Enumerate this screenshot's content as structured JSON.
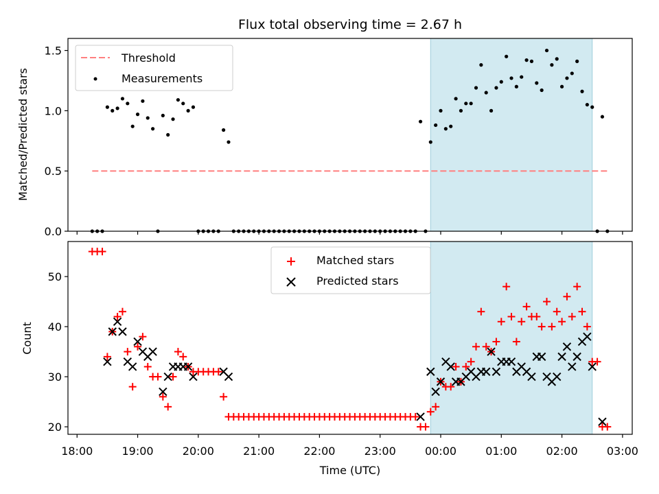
{
  "chart_data": [
    {
      "type": "scatter",
      "title": "Flux total observing time = 2.67 h",
      "xlabel": "",
      "ylabel": "Matched/Predicted stars",
      "ylim": [
        0,
        1.6
      ],
      "yticks": [
        0.0,
        0.5,
        1.0,
        1.5
      ],
      "ytick_labels": [
        "0.0",
        "0.5",
        "1.0",
        "1.5"
      ],
      "grid": false,
      "legend_position": "top-left",
      "shaded_region": {
        "start": "23:50",
        "end": "02:30",
        "color": "#add8e6"
      },
      "threshold": {
        "name": "Threshold",
        "value": 0.5,
        "x_start": "18:15",
        "x_end": "02:45",
        "color": "#ff7f7f",
        "style": "dashed"
      },
      "series": [
        {
          "name": "Measurements",
          "color": "#000000",
          "marker": "dot",
          "points": [
            [
              "18:15",
              0
            ],
            [
              "18:20",
              0
            ],
            [
              "18:25",
              0
            ],
            [
              "18:30",
              1.03
            ],
            [
              "18:35",
              1.0
            ],
            [
              "18:40",
              1.02
            ],
            [
              "18:45",
              1.1
            ],
            [
              "18:50",
              1.06
            ],
            [
              "18:55",
              0.87
            ],
            [
              "19:00",
              0.97
            ],
            [
              "19:05",
              1.08
            ],
            [
              "19:10",
              0.94
            ],
            [
              "19:15",
              0.85
            ],
            [
              "19:20",
              0
            ],
            [
              "19:25",
              0.96
            ],
            [
              "19:30",
              0.8
            ],
            [
              "19:35",
              0.93
            ],
            [
              "19:40",
              1.09
            ],
            [
              "19:45",
              1.06
            ],
            [
              "19:50",
              1.0
            ],
            [
              "19:55",
              1.03
            ],
            [
              "20:00",
              0
            ],
            [
              "20:05",
              0
            ],
            [
              "20:10",
              0
            ],
            [
              "20:15",
              0
            ],
            [
              "20:20",
              0
            ],
            [
              "20:25",
              0.84
            ],
            [
              "20:30",
              0.74
            ],
            [
              "20:35",
              0
            ],
            [
              "20:40",
              0
            ],
            [
              "20:45",
              0
            ],
            [
              "20:50",
              0
            ],
            [
              "20:55",
              0
            ],
            [
              "21:00",
              0
            ],
            [
              "21:05",
              0
            ],
            [
              "21:10",
              0
            ],
            [
              "21:15",
              0
            ],
            [
              "21:20",
              0
            ],
            [
              "21:25",
              0
            ],
            [
              "21:30",
              0
            ],
            [
              "21:35",
              0
            ],
            [
              "21:40",
              0
            ],
            [
              "21:45",
              0
            ],
            [
              "21:50",
              0
            ],
            [
              "21:55",
              0
            ],
            [
              "22:00",
              0
            ],
            [
              "22:05",
              0
            ],
            [
              "22:10",
              0
            ],
            [
              "22:15",
              0
            ],
            [
              "22:20",
              0
            ],
            [
              "22:25",
              0
            ],
            [
              "22:30",
              0
            ],
            [
              "22:35",
              0
            ],
            [
              "22:40",
              0
            ],
            [
              "22:45",
              0
            ],
            [
              "22:50",
              0
            ],
            [
              "22:55",
              0
            ],
            [
              "23:00",
              0
            ],
            [
              "23:05",
              0
            ],
            [
              "23:10",
              0
            ],
            [
              "23:15",
              0
            ],
            [
              "23:20",
              0
            ],
            [
              "23:25",
              0
            ],
            [
              "23:30",
              0
            ],
            [
              "23:35",
              0
            ],
            [
              "23:40",
              0.91
            ],
            [
              "23:45",
              0
            ],
            [
              "23:50",
              0.74
            ],
            [
              "23:55",
              0.88
            ],
            [
              "00:00",
              1.0
            ],
            [
              "00:05",
              0.85
            ],
            [
              "00:10",
              0.87
            ],
            [
              "00:15",
              1.1
            ],
            [
              "00:20",
              1.0
            ],
            [
              "00:25",
              1.06
            ],
            [
              "00:30",
              1.06
            ],
            [
              "00:35",
              1.19
            ],
            [
              "00:40",
              1.38
            ],
            [
              "00:45",
              1.15
            ],
            [
              "00:50",
              1.0
            ],
            [
              "00:55",
              1.19
            ],
            [
              "01:00",
              1.24
            ],
            [
              "01:05",
              1.45
            ],
            [
              "01:10",
              1.27
            ],
            [
              "01:15",
              1.2
            ],
            [
              "01:20",
              1.28
            ],
            [
              "01:25",
              1.42
            ],
            [
              "01:30",
              1.41
            ],
            [
              "01:35",
              1.23
            ],
            [
              "01:40",
              1.17
            ],
            [
              "01:45",
              1.5
            ],
            [
              "01:50",
              1.38
            ],
            [
              "01:55",
              1.43
            ],
            [
              "02:00",
              1.2
            ],
            [
              "02:05",
              1.27
            ],
            [
              "02:10",
              1.31
            ],
            [
              "02:15",
              1.41
            ],
            [
              "02:20",
              1.16
            ],
            [
              "02:25",
              1.05
            ],
            [
              "02:30",
              1.03
            ],
            [
              "02:35",
              0
            ],
            [
              "02:40",
              0.95
            ],
            [
              "02:45",
              0
            ]
          ]
        }
      ]
    },
    {
      "type": "scatter",
      "title": "",
      "xlabel": "Time (UTC)",
      "ylabel": "Count",
      "ylim": [
        18.5,
        57
      ],
      "yticks": [
        20,
        30,
        40,
        50
      ],
      "ytick_labels": [
        "20",
        "30",
        "40",
        "50"
      ],
      "xticks": [
        "18:00",
        "19:00",
        "20:00",
        "21:00",
        "22:00",
        "23:00",
        "00:00",
        "01:00",
        "02:00",
        "03:00"
      ],
      "grid": false,
      "legend_position": "top-center",
      "shaded_region": {
        "start": "23:50",
        "end": "02:30",
        "color": "#add8e6"
      },
      "series": [
        {
          "name": "Matched stars",
          "color": "#ff0000",
          "marker": "plus",
          "points": [
            [
              "18:15",
              55
            ],
            [
              "18:20",
              55
            ],
            [
              "18:25",
              55
            ],
            [
              "18:30",
              34
            ],
            [
              "18:35",
              39
            ],
            [
              "18:40",
              42
            ],
            [
              "18:45",
              43
            ],
            [
              "18:50",
              35
            ],
            [
              "18:55",
              28
            ],
            [
              "19:00",
              36
            ],
            [
              "19:05",
              38
            ],
            [
              "19:10",
              32
            ],
            [
              "19:15",
              30
            ],
            [
              "19:20",
              30
            ],
            [
              "19:25",
              26
            ],
            [
              "19:30",
              24
            ],
            [
              "19:35",
              30
            ],
            [
              "19:40",
              35
            ],
            [
              "19:45",
              34
            ],
            [
              "19:50",
              32
            ],
            [
              "19:55",
              31
            ],
            [
              "20:00",
              31
            ],
            [
              "20:05",
              31
            ],
            [
              "20:10",
              31
            ],
            [
              "20:15",
              31
            ],
            [
              "20:20",
              31
            ],
            [
              "20:25",
              26
            ],
            [
              "20:30",
              22
            ],
            [
              "20:35",
              22
            ],
            [
              "20:40",
              22
            ],
            [
              "20:45",
              22
            ],
            [
              "20:50",
              22
            ],
            [
              "20:55",
              22
            ],
            [
              "21:00",
              22
            ],
            [
              "21:05",
              22
            ],
            [
              "21:10",
              22
            ],
            [
              "21:15",
              22
            ],
            [
              "21:20",
              22
            ],
            [
              "21:25",
              22
            ],
            [
              "21:30",
              22
            ],
            [
              "21:35",
              22
            ],
            [
              "21:40",
              22
            ],
            [
              "21:45",
              22
            ],
            [
              "21:50",
              22
            ],
            [
              "21:55",
              22
            ],
            [
              "22:00",
              22
            ],
            [
              "22:05",
              22
            ],
            [
              "22:10",
              22
            ],
            [
              "22:15",
              22
            ],
            [
              "22:20",
              22
            ],
            [
              "22:25",
              22
            ],
            [
              "22:30",
              22
            ],
            [
              "22:35",
              22
            ],
            [
              "22:40",
              22
            ],
            [
              "22:45",
              22
            ],
            [
              "22:50",
              22
            ],
            [
              "22:55",
              22
            ],
            [
              "23:00",
              22
            ],
            [
              "23:05",
              22
            ],
            [
              "23:10",
              22
            ],
            [
              "23:15",
              22
            ],
            [
              "23:20",
              22
            ],
            [
              "23:25",
              22
            ],
            [
              "23:30",
              22
            ],
            [
              "23:35",
              22
            ],
            [
              "23:40",
              20
            ],
            [
              "23:45",
              20
            ],
            [
              "23:50",
              23
            ],
            [
              "23:55",
              24
            ],
            [
              "00:00",
              29
            ],
            [
              "00:05",
              28
            ],
            [
              "00:10",
              28
            ],
            [
              "00:15",
              32
            ],
            [
              "00:20",
              29
            ],
            [
              "00:25",
              32
            ],
            [
              "00:30",
              33
            ],
            [
              "00:35",
              36
            ],
            [
              "00:40",
              43
            ],
            [
              "00:45",
              36
            ],
            [
              "00:50",
              35
            ],
            [
              "00:55",
              37
            ],
            [
              "01:00",
              41
            ],
            [
              "01:05",
              48
            ],
            [
              "01:10",
              42
            ],
            [
              "01:15",
              37
            ],
            [
              "01:20",
              41
            ],
            [
              "01:25",
              44
            ],
            [
              "01:30",
              42
            ],
            [
              "01:35",
              42
            ],
            [
              "01:40",
              40
            ],
            [
              "01:45",
              45
            ],
            [
              "01:50",
              40
            ],
            [
              "01:55",
              43
            ],
            [
              "02:00",
              41
            ],
            [
              "02:05",
              46
            ],
            [
              "02:10",
              42
            ],
            [
              "02:15",
              48
            ],
            [
              "02:20",
              43
            ],
            [
              "02:25",
              40
            ],
            [
              "02:30",
              33
            ],
            [
              "02:35",
              33
            ],
            [
              "02:40",
              20
            ],
            [
              "02:45",
              20
            ]
          ]
        },
        {
          "name": "Predicted stars",
          "color": "#000000",
          "marker": "x",
          "points": [
            [
              "18:30",
              33
            ],
            [
              "18:35",
              39
            ],
            [
              "18:40",
              41
            ],
            [
              "18:45",
              39
            ],
            [
              "18:50",
              33
            ],
            [
              "18:55",
              32
            ],
            [
              "19:00",
              37
            ],
            [
              "19:05",
              35
            ],
            [
              "19:10",
              34
            ],
            [
              "19:15",
              35
            ],
            [
              "19:25",
              27
            ],
            [
              "19:30",
              30
            ],
            [
              "19:35",
              32
            ],
            [
              "19:40",
              32
            ],
            [
              "19:45",
              32
            ],
            [
              "19:50",
              32
            ],
            [
              "19:55",
              30
            ],
            [
              "20:25",
              31
            ],
            [
              "20:30",
              30
            ],
            [
              "23:40",
              22
            ],
            [
              "23:50",
              31
            ],
            [
              "23:55",
              27
            ],
            [
              "00:00",
              29
            ],
            [
              "00:05",
              33
            ],
            [
              "00:10",
              32
            ],
            [
              "00:15",
              29
            ],
            [
              "00:20",
              29
            ],
            [
              "00:25",
              30
            ],
            [
              "00:30",
              31
            ],
            [
              "00:35",
              30
            ],
            [
              "00:40",
              31
            ],
            [
              "00:45",
              31
            ],
            [
              "00:50",
              35
            ],
            [
              "00:55",
              31
            ],
            [
              "01:00",
              33
            ],
            [
              "01:05",
              33
            ],
            [
              "01:10",
              33
            ],
            [
              "01:15",
              31
            ],
            [
              "01:20",
              32
            ],
            [
              "01:25",
              31
            ],
            [
              "01:30",
              30
            ],
            [
              "01:35",
              34
            ],
            [
              "01:40",
              34
            ],
            [
              "01:45",
              30
            ],
            [
              "01:50",
              29
            ],
            [
              "01:55",
              30
            ],
            [
              "02:00",
              34
            ],
            [
              "02:05",
              36
            ],
            [
              "02:10",
              32
            ],
            [
              "02:15",
              34
            ],
            [
              "02:20",
              37
            ],
            [
              "02:25",
              38
            ],
            [
              "02:30",
              32
            ],
            [
              "02:40",
              21
            ]
          ]
        }
      ]
    }
  ]
}
